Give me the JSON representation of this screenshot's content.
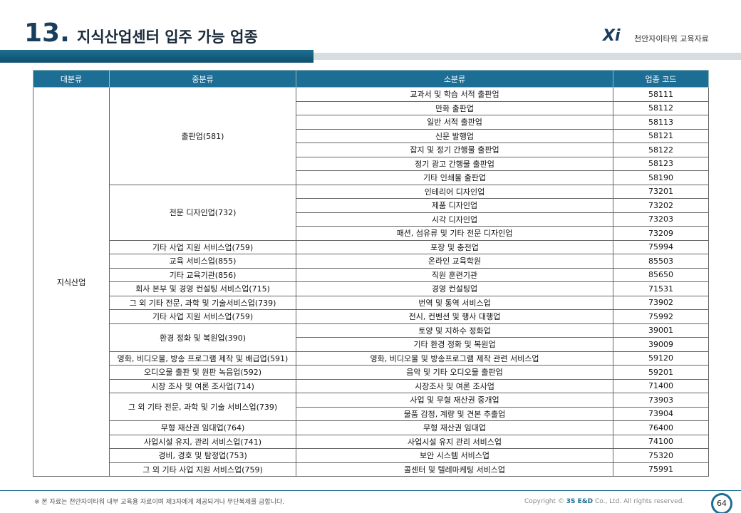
{
  "header": {
    "number": "13.",
    "title": "지식산업센터 입주 가능 업종",
    "brand": "천안자이타워 교육자료"
  },
  "table": {
    "columns": [
      "대분류",
      "중분류",
      "소분류",
      "업종 코드"
    ],
    "major": "지식산업",
    "groups": [
      {
        "name": "출판업(581)",
        "items": [
          {
            "sub": "교과서 및 학습 서적 출판업",
            "code": 58111
          },
          {
            "sub": "만화 출판업",
            "code": 58112
          },
          {
            "sub": "일반 서적 출판업",
            "code": 58113
          },
          {
            "sub": "신문 발행업",
            "code": 58121
          },
          {
            "sub": "잡지 및 정기 간행물 출판업",
            "code": 58122
          },
          {
            "sub": "정기 광고 간행물 출판업",
            "code": 58123
          },
          {
            "sub": "기타 인쇄물 출판업",
            "code": 58190
          }
        ]
      },
      {
        "name": "전문 디자인업(732)",
        "items": [
          {
            "sub": "인테리어 디자인업",
            "code": 73201
          },
          {
            "sub": "제품 디자인업",
            "code": 73202
          },
          {
            "sub": "시각 디자인업",
            "code": 73203
          },
          {
            "sub": "패션, 섬유류 및 기타 전문 디자인업",
            "code": 73209
          }
        ]
      },
      {
        "name": "기타 사업 지원 서비스업(759)",
        "items": [
          {
            "sub": "포장 및 충전업",
            "code": 75994
          }
        ]
      },
      {
        "name": "교육 서비스업(855)",
        "items": [
          {
            "sub": "온라인 교육학원",
            "code": 85503
          }
        ]
      },
      {
        "name": "기타 교육기관(856)",
        "items": [
          {
            "sub": "직원 훈련기관",
            "code": 85650
          }
        ]
      },
      {
        "name": "회사 본부 및 경영 컨설팅 서비스업(715)",
        "items": [
          {
            "sub": "경영 컨설팅업",
            "code": 71531
          }
        ]
      },
      {
        "name": "그 외 기타 전문, 과학 및 기술서비스업(739)",
        "items": [
          {
            "sub": "번역 및 통역 서비스업",
            "code": 73902
          }
        ]
      },
      {
        "name": "기타 사업 지원 서비스업(759)",
        "items": [
          {
            "sub": "전시, 컨벤션 및 행사 대행업",
            "code": 75992
          }
        ]
      },
      {
        "name": "환경 정화 및 복원업(390)",
        "items": [
          {
            "sub": "토양 및 지하수 정화업",
            "code": 39001
          },
          {
            "sub": "기타 환경 정화 및 복원업",
            "code": 39009
          }
        ]
      },
      {
        "name": "영화, 비디오물, 방송 프로그램 제작 및 배급업(591)",
        "items": [
          {
            "sub": "영화, 비디오물 및 방송프로그램 제작 관련 서비스업",
            "code": 59120
          }
        ]
      },
      {
        "name": "오디오물 출판 및 원판 녹음업(592)",
        "items": [
          {
            "sub": "음악 및 기타 오디오물 출판업",
            "code": 59201
          }
        ]
      },
      {
        "name": "시장 조사 및 여론 조사업(714)",
        "items": [
          {
            "sub": "시장조사 및 여론 조사업",
            "code": 71400
          }
        ]
      },
      {
        "name": "그 외 기타 전문, 과학 및 기술 서비스업(739)",
        "items": [
          {
            "sub": "사업 및 무형 재산권 중개업",
            "code": 73903
          },
          {
            "sub": "물품 감정, 계량 및 견본 추출업",
            "code": 73904
          }
        ]
      },
      {
        "name": "무형 재산권 임대업(764)",
        "items": [
          {
            "sub": "무형 재산권 임대업",
            "code": 76400
          }
        ]
      },
      {
        "name": "사업시설 유지, 관리 서비스업(741)",
        "items": [
          {
            "sub": "사업시설 유지 관리 서비스업",
            "code": 74100
          }
        ]
      },
      {
        "name": "경비, 경호 및 탐정업(753)",
        "items": [
          {
            "sub": "보안 시스템 서비스업",
            "code": 75320
          }
        ]
      },
      {
        "name": "그 외 기타 사업 지원 서비스업(759)",
        "items": [
          {
            "sub": "콜센터 및 텔레마케팅 서비스업",
            "code": 75991
          }
        ]
      }
    ]
  },
  "footer": {
    "notice": "※ 본 자료는 천안자이타워 내부 교육용 자료이며 제3자에게 제공되거나 무단복제를 금합니다.",
    "copyright": "Copyright ©",
    "company": "3S E&D",
    "rights": "Co., Ltd. All rights reserved.",
    "page": "64"
  }
}
